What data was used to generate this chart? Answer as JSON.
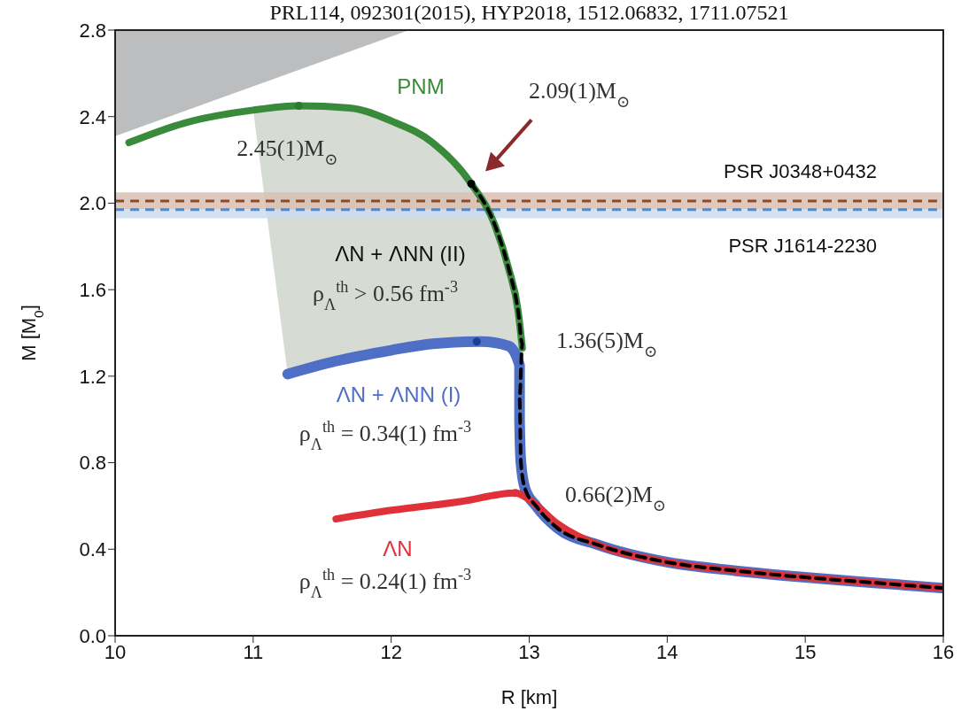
{
  "chart_data": {
    "type": "line",
    "title": "PRL114, 092301(2015),  HYP2018, 1512.06832, 1711.07521",
    "xlabel": "R [km]",
    "ylabel": "M [M$_{0}$]",
    "xlim": [
      10,
      16
    ],
    "xticks": [
      10,
      11,
      12,
      13,
      14,
      15,
      16
    ],
    "ylim": [
      0,
      2.8
    ],
    "yticks": [
      {
        "value": 0,
        "label": "0.0"
      },
      0.4,
      0.8,
      1.2,
      1.6,
      {
        "value": 2,
        "label": "2.0"
      },
      2.4,
      2.8
    ],
    "series": [
      {
        "name": "PNM",
        "color": "#3a8a3c",
        "x": [
          10.1,
          10.5,
          11.0,
          11.33,
          11.7,
          12.0,
          12.3,
          12.58,
          12.75,
          12.85,
          12.92,
          12.95
        ],
        "values": [
          2.28,
          2.37,
          2.43,
          2.45,
          2.44,
          2.38,
          2.28,
          2.09,
          1.9,
          1.7,
          1.5,
          1.33
        ]
      },
      {
        "name": "ΛN + ΛNN (I)",
        "color": "#4f6fc6",
        "x": [
          11.25,
          11.6,
          12.0,
          12.3,
          12.65,
          12.85,
          12.93,
          12.93,
          12.94,
          12.97,
          13.05,
          13.2,
          13.5,
          14,
          14.5,
          15,
          15.5,
          16
        ],
        "values": [
          1.21,
          1.27,
          1.32,
          1.35,
          1.36,
          1.34,
          1.25,
          1.0,
          0.8,
          0.68,
          0.6,
          0.5,
          0.42,
          0.34,
          0.3,
          0.27,
          0.245,
          0.22
        ]
      },
      {
        "name": "ΛN",
        "color": "#e0303a",
        "x": [
          11.6,
          12.0,
          12.5,
          12.9,
          13.0,
          13.2,
          13.5,
          14,
          14.5,
          15,
          15.5,
          16
        ],
        "values": [
          0.54,
          0.58,
          0.62,
          0.66,
          0.63,
          0.52,
          0.42,
          0.34,
          0.3,
          0.27,
          0.245,
          0.22
        ]
      },
      {
        "color": "#000000",
        "line_style": "dashed",
        "x": [
          12.58,
          12.75,
          12.85,
          12.92,
          12.95,
          12.93,
          12.94,
          12.97,
          13.05,
          13.2,
          13.5,
          14,
          14.5,
          15,
          15.5,
          16
        ],
        "values": [
          2.09,
          1.9,
          1.7,
          1.5,
          1.35,
          1.1,
          0.8,
          0.68,
          0.6,
          0.5,
          0.42,
          0.34,
          0.3,
          0.27,
          0.245,
          0.22
        ]
      },
      {
        "type": "scatter",
        "x": [
          11.33,
          12.58,
          12.62,
          12.9
        ],
        "values": [
          2.45,
          2.09,
          1.36,
          0.66
        ],
        "colors": [
          "#2c7a2e",
          "#000000",
          "#1a3f9a",
          "#e0303a"
        ]
      }
    ],
    "bands": [
      {
        "axis": "y",
        "from": 1.97,
        "to": 2.05,
        "color": "#d9bfb3"
      },
      {
        "axis": "y",
        "from": 1.93,
        "to": 1.97,
        "color": "#cadcf2"
      }
    ],
    "ref_lines": [
      {
        "axis": "y",
        "value": 2.01,
        "label": "PSR J0348+0432",
        "color": "#8b4a2b",
        "line_style": "dashed"
      },
      {
        "axis": "y",
        "value": 1.97,
        "label": "PSR J1614-2230",
        "color": "#4a8ad8",
        "line_style": "dashed"
      }
    ],
    "annotations": [
      {
        "text": "2.45(1)M$_{⊙}$",
        "x": 11.33,
        "y": 2.45
      },
      "2.09(1)M$_{⊙}$",
      "1.36(5)M$_{⊙}$",
      {
        "text": "0.66(2)M$_{⊙}$",
        "x": 12.9,
        "y": 0.66
      },
      "ΛN + ΛNN (II)",
      "ρ$_{Λ}$$^{th}$ > 0.56 fm$^{-3}$",
      "ρ$_{Λ}$$^{th}$ = 0.34(1) fm$^{-3}$",
      "ρ$_{Λ}$$^{th}$ = 0.24(1) fm$^{-3}$"
    ]
  }
}
